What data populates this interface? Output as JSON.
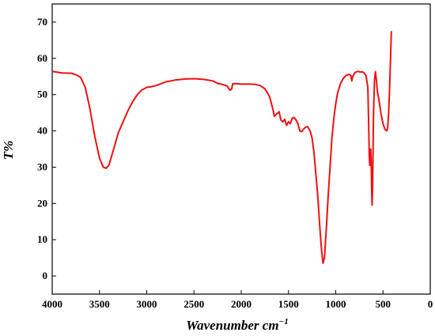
{
  "chart_data": {
    "type": "line",
    "xlabel": "Wavenumber cm",
    "xlabel_superscript": "−1",
    "ylabel": "T%",
    "xlim": [
      4000,
      0
    ],
    "ylim": [
      -5,
      75
    ],
    "x_ticks": [
      4000,
      3500,
      3000,
      2500,
      2000,
      1500,
      1000,
      500,
      0
    ],
    "y_ticks": [
      0,
      10,
      20,
      30,
      40,
      50,
      60,
      70
    ],
    "line_color": "#ee1111",
    "series": [
      {
        "points": [
          [
            4000,
            56.4
          ],
          [
            3900,
            56.0
          ],
          [
            3800,
            55.9
          ],
          [
            3750,
            55.5
          ],
          [
            3700,
            54.8
          ],
          [
            3650,
            52.0
          ],
          [
            3600,
            46.0
          ],
          [
            3550,
            38.5
          ],
          [
            3500,
            32.5
          ],
          [
            3460,
            30.0
          ],
          [
            3430,
            29.7
          ],
          [
            3400,
            30.5
          ],
          [
            3350,
            35.0
          ],
          [
            3300,
            39.5
          ],
          [
            3250,
            42.5
          ],
          [
            3200,
            45.5
          ],
          [
            3150,
            48.0
          ],
          [
            3100,
            50.0
          ],
          [
            3050,
            51.3
          ],
          [
            3000,
            52.0
          ],
          [
            2950,
            52.2
          ],
          [
            2900,
            52.5
          ],
          [
            2850,
            53.0
          ],
          [
            2800,
            53.5
          ],
          [
            2700,
            54.0
          ],
          [
            2600,
            54.3
          ],
          [
            2500,
            54.4
          ],
          [
            2400,
            54.2
          ],
          [
            2300,
            53.8
          ],
          [
            2250,
            53.1
          ],
          [
            2200,
            52.8
          ],
          [
            2150,
            52.4
          ],
          [
            2120,
            51.2
          ],
          [
            2100,
            51.6
          ],
          [
            2090,
            53.0
          ],
          [
            2050,
            53.0
          ],
          [
            2000,
            52.9
          ],
          [
            1900,
            52.9
          ],
          [
            1850,
            52.8
          ],
          [
            1800,
            52.5
          ],
          [
            1750,
            51.6
          ],
          [
            1700,
            49.5
          ],
          [
            1680,
            47.5
          ],
          [
            1660,
            45.5
          ],
          [
            1650,
            44.0
          ],
          [
            1620,
            44.8
          ],
          [
            1600,
            45.3
          ],
          [
            1580,
            43.0
          ],
          [
            1560,
            42.5
          ],
          [
            1540,
            43.2
          ],
          [
            1520,
            41.5
          ],
          [
            1500,
            42.5
          ],
          [
            1480,
            42.0
          ],
          [
            1460,
            43.5
          ],
          [
            1440,
            43.7
          ],
          [
            1420,
            43.0
          ],
          [
            1400,
            42.0
          ],
          [
            1380,
            40.0
          ],
          [
            1360,
            39.8
          ],
          [
            1340,
            40.5
          ],
          [
            1320,
            41.0
          ],
          [
            1300,
            41.2
          ],
          [
            1270,
            40.0
          ],
          [
            1250,
            38.0
          ],
          [
            1230,
            34.0
          ],
          [
            1210,
            28.0
          ],
          [
            1190,
            22.0
          ],
          [
            1170,
            14.0
          ],
          [
            1150,
            7.0
          ],
          [
            1135,
            3.5
          ],
          [
            1120,
            5.0
          ],
          [
            1100,
            13.0
          ],
          [
            1080,
            22.0
          ],
          [
            1060,
            30.0
          ],
          [
            1040,
            38.0
          ],
          [
            1020,
            43.5
          ],
          [
            1000,
            47.5
          ],
          [
            980,
            50.5
          ],
          [
            950,
            53.0
          ],
          [
            920,
            54.5
          ],
          [
            890,
            55.3
          ],
          [
            860,
            55.6
          ],
          [
            840,
            55.3
          ],
          [
            830,
            53.8
          ],
          [
            820,
            55.0
          ],
          [
            800,
            56.0
          ],
          [
            780,
            56.3
          ],
          [
            760,
            56.4
          ],
          [
            740,
            56.2
          ],
          [
            720,
            56.3
          ],
          [
            700,
            56.0
          ],
          [
            680,
            55.3
          ],
          [
            660,
            52.0
          ],
          [
            650,
            40.0
          ],
          [
            645,
            33.0
          ],
          [
            640,
            30.5
          ],
          [
            635,
            34.0
          ],
          [
            630,
            35.0
          ],
          [
            625,
            32.0
          ],
          [
            620,
            24.0
          ],
          [
            615,
            19.5
          ],
          [
            610,
            25.0
          ],
          [
            600,
            45.0
          ],
          [
            590,
            54.0
          ],
          [
            580,
            56.3
          ],
          [
            570,
            54.0
          ],
          [
            560,
            51.0
          ],
          [
            540,
            48.0
          ],
          [
            520,
            44.5
          ],
          [
            500,
            42.0
          ],
          [
            480,
            40.5
          ],
          [
            460,
            40.0
          ],
          [
            450,
            41.0
          ],
          [
            440,
            45.0
          ],
          [
            430,
            52.0
          ],
          [
            420,
            60.0
          ],
          [
            412,
            67.5
          ]
        ]
      }
    ]
  }
}
